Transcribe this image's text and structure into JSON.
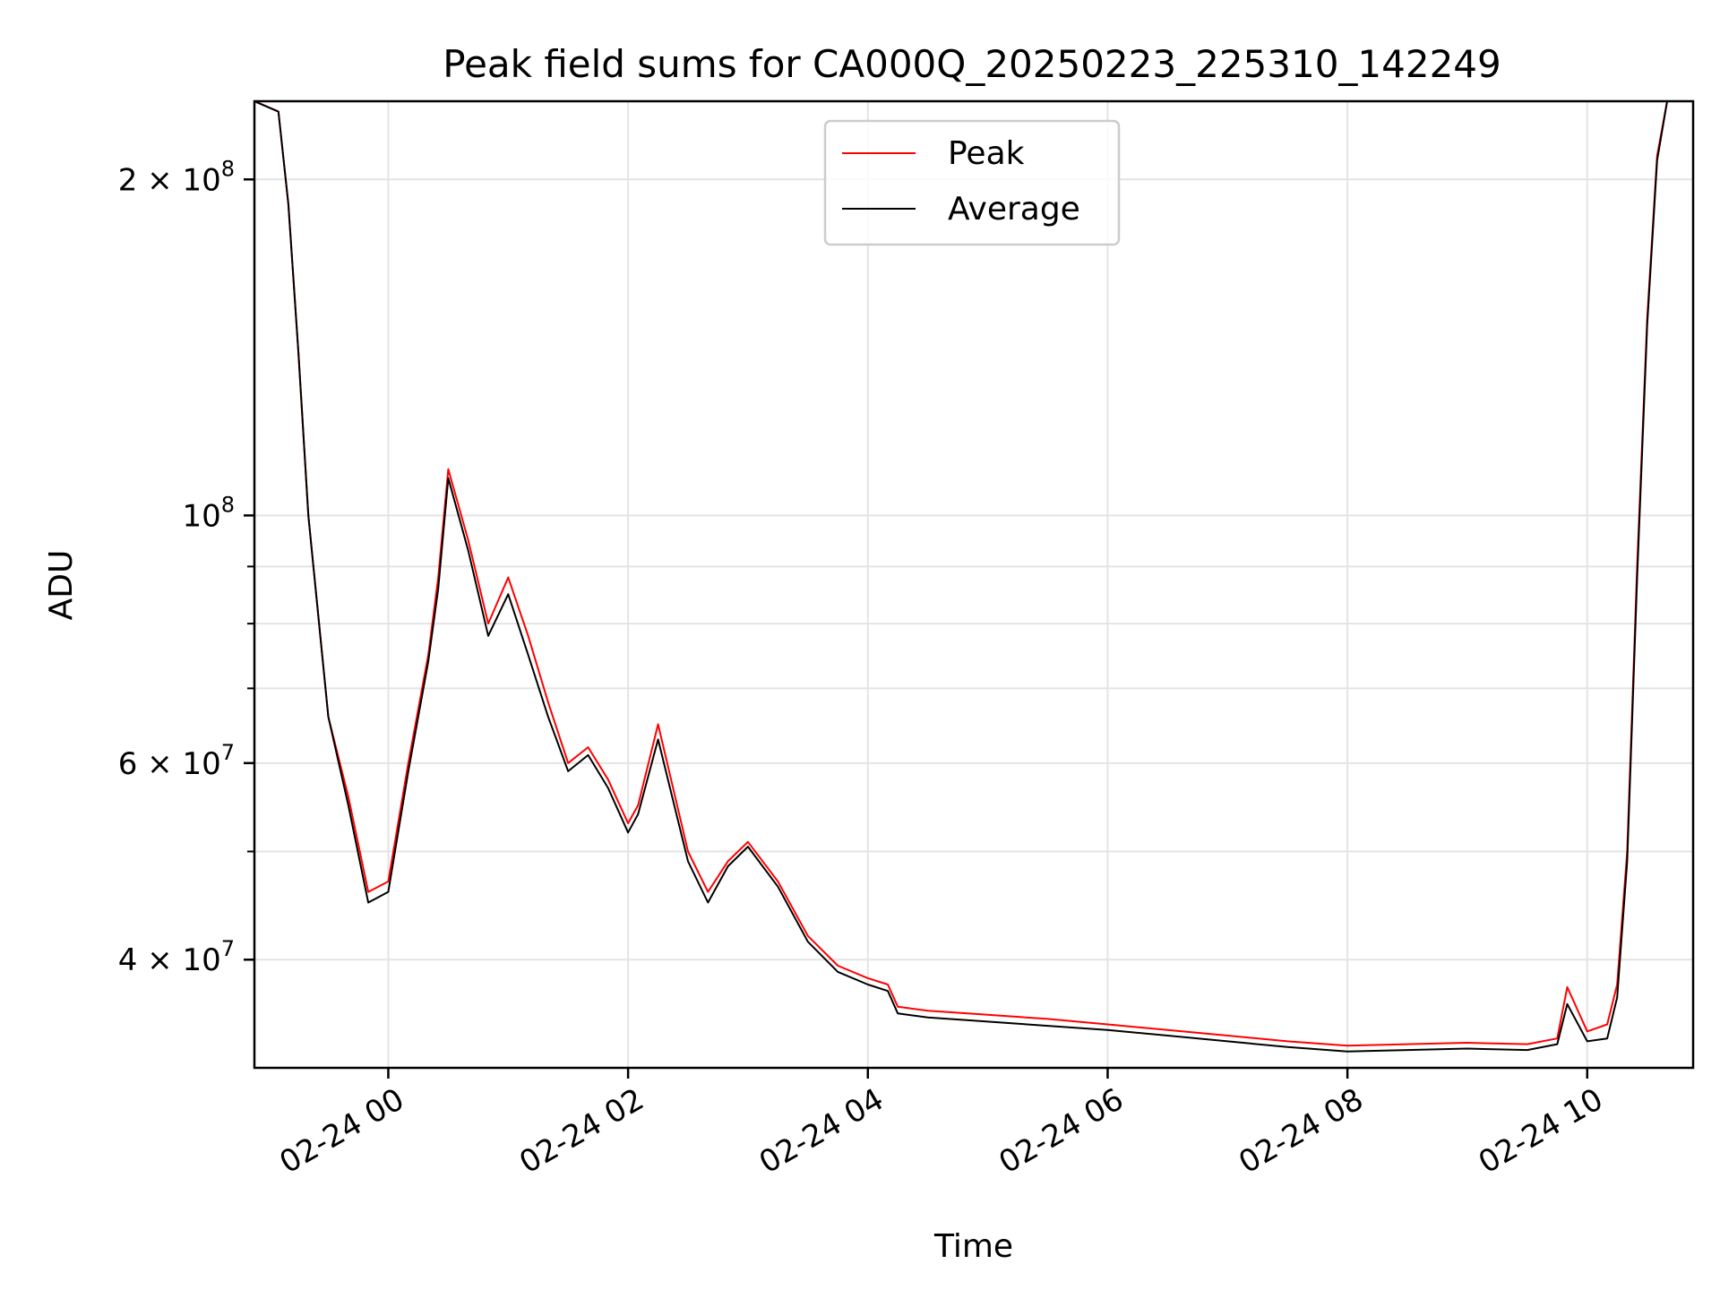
{
  "chart_data": {
    "type": "line",
    "title": "Peak field sums for CA000Q_20250223_225310_142249",
    "xlabel": "Time",
    "ylabel": "ADU",
    "y_scale": "log",
    "ylim": [
      32000000,
      235000000
    ],
    "xlim": [
      "2025-02-23 22:53",
      "2025-02-24 10:53"
    ],
    "grid": true,
    "legend_position": "upper-center",
    "x_ticks": [
      {
        "value": "2025-02-24 00:00",
        "label": "02-24 00"
      },
      {
        "value": "2025-02-24 02:00",
        "label": "02-24 02"
      },
      {
        "value": "2025-02-24 04:00",
        "label": "02-24 04"
      },
      {
        "value": "2025-02-24 06:00",
        "label": "02-24 06"
      },
      {
        "value": "2025-02-24 08:00",
        "label": "02-24 08"
      },
      {
        "value": "2025-02-24 10:00",
        "label": "02-24 10"
      }
    ],
    "y_ticks": [
      {
        "value": 40000000,
        "base": "4",
        "exp": "7"
      },
      {
        "value": 60000000,
        "base": "6",
        "exp": "7"
      },
      {
        "value": 100000000,
        "base": "",
        "exp": "8"
      },
      {
        "value": 200000000,
        "base": "2",
        "exp": "8"
      }
    ],
    "series": [
      {
        "name": "Peak",
        "color": "#ff0000",
        "x": [
          "2025-02-23 22:53",
          "2025-02-23 23:05",
          "2025-02-23 23:10",
          "2025-02-23 23:15",
          "2025-02-23 23:20",
          "2025-02-23 23:30",
          "2025-02-23 23:40",
          "2025-02-23 23:50",
          "2025-02-24 00:00",
          "2025-02-24 00:10",
          "2025-02-24 00:20",
          "2025-02-24 00:25",
          "2025-02-24 00:30",
          "2025-02-24 00:40",
          "2025-02-24 00:50",
          "2025-02-24 01:00",
          "2025-02-24 01:10",
          "2025-02-24 01:20",
          "2025-02-24 01:30",
          "2025-02-24 01:40",
          "2025-02-24 01:50",
          "2025-02-24 02:00",
          "2025-02-24 02:05",
          "2025-02-24 02:15",
          "2025-02-24 02:30",
          "2025-02-24 02:40",
          "2025-02-24 02:50",
          "2025-02-24 03:00",
          "2025-02-24 03:15",
          "2025-02-24 03:30",
          "2025-02-24 03:45",
          "2025-02-24 04:00",
          "2025-02-24 04:10",
          "2025-02-24 04:15",
          "2025-02-24 04:30",
          "2025-02-24 05:00",
          "2025-02-24 05:30",
          "2025-02-24 06:00",
          "2025-02-24 06:30",
          "2025-02-24 07:00",
          "2025-02-24 07:30",
          "2025-02-24 08:00",
          "2025-02-24 08:30",
          "2025-02-24 09:00",
          "2025-02-24 09:30",
          "2025-02-24 09:45",
          "2025-02-24 09:50",
          "2025-02-24 10:00",
          "2025-02-24 10:10",
          "2025-02-24 10:15",
          "2025-02-24 10:20",
          "2025-02-24 10:25",
          "2025-02-24 10:30",
          "2025-02-24 10:35",
          "2025-02-24 10:40",
          "2025-02-24 10:45",
          "2025-02-24 10:53"
        ],
        "y": [
          235000000,
          230000000,
          190000000,
          140000000,
          100000000,
          66000000,
          56000000,
          46000000,
          47000000,
          60000000,
          75000000,
          88000000,
          110000000,
          95000000,
          80000000,
          88000000,
          78000000,
          68000000,
          60000000,
          62000000,
          58000000,
          53000000,
          55000000,
          65000000,
          50000000,
          46000000,
          49000000,
          51000000,
          47000000,
          42000000,
          39500000,
          38500000,
          38000000,
          36300000,
          36000000,
          35700000,
          35400000,
          35000000,
          34600000,
          34200000,
          33800000,
          33500000,
          33600000,
          33700000,
          33600000,
          34000000,
          37800000,
          34500000,
          35000000,
          38000000,
          50000000,
          90000000,
          150000000,
          210000000,
          235000000,
          235000000,
          235000000
        ]
      },
      {
        "name": "Average",
        "color": "#000000",
        "x": [
          "2025-02-23 22:53",
          "2025-02-23 23:05",
          "2025-02-23 23:10",
          "2025-02-23 23:15",
          "2025-02-23 23:20",
          "2025-02-23 23:30",
          "2025-02-23 23:40",
          "2025-02-23 23:50",
          "2025-02-24 00:00",
          "2025-02-24 00:10",
          "2025-02-24 00:20",
          "2025-02-24 00:25",
          "2025-02-24 00:30",
          "2025-02-24 00:40",
          "2025-02-24 00:50",
          "2025-02-24 01:00",
          "2025-02-24 01:10",
          "2025-02-24 01:20",
          "2025-02-24 01:30",
          "2025-02-24 01:40",
          "2025-02-24 01:50",
          "2025-02-24 02:00",
          "2025-02-24 02:05",
          "2025-02-24 02:15",
          "2025-02-24 02:30",
          "2025-02-24 02:40",
          "2025-02-24 02:50",
          "2025-02-24 03:00",
          "2025-02-24 03:15",
          "2025-02-24 03:30",
          "2025-02-24 03:45",
          "2025-02-24 04:00",
          "2025-02-24 04:10",
          "2025-02-24 04:15",
          "2025-02-24 04:30",
          "2025-02-24 05:00",
          "2025-02-24 05:30",
          "2025-02-24 06:00",
          "2025-02-24 06:30",
          "2025-02-24 07:00",
          "2025-02-24 07:30",
          "2025-02-24 08:00",
          "2025-02-24 08:30",
          "2025-02-24 09:00",
          "2025-02-24 09:30",
          "2025-02-24 09:45",
          "2025-02-24 09:50",
          "2025-02-24 10:00",
          "2025-02-24 10:10",
          "2025-02-24 10:15",
          "2025-02-24 10:20",
          "2025-02-24 10:25",
          "2025-02-24 10:30",
          "2025-02-24 10:35",
          "2025-02-24 10:40",
          "2025-02-24 10:45",
          "2025-02-24 10:53"
        ],
        "y": [
          235000000,
          230000000,
          190000000,
          140000000,
          100000000,
          66000000,
          55000000,
          45000000,
          46000000,
          59000000,
          74000000,
          86000000,
          108000000,
          93000000,
          78000000,
          85000000,
          75000000,
          66000000,
          59000000,
          61000000,
          57000000,
          52000000,
          54000000,
          63000000,
          49000000,
          45000000,
          48500000,
          50500000,
          46500000,
          41500000,
          39000000,
          38000000,
          37500000,
          35800000,
          35500000,
          35200000,
          34900000,
          34600000,
          34200000,
          33800000,
          33400000,
          33100000,
          33200000,
          33300000,
          33200000,
          33600000,
          36500000,
          33800000,
          34000000,
          37000000,
          49000000,
          88000000,
          148000000,
          208000000,
          235000000,
          235000000,
          235000000
        ]
      }
    ]
  }
}
